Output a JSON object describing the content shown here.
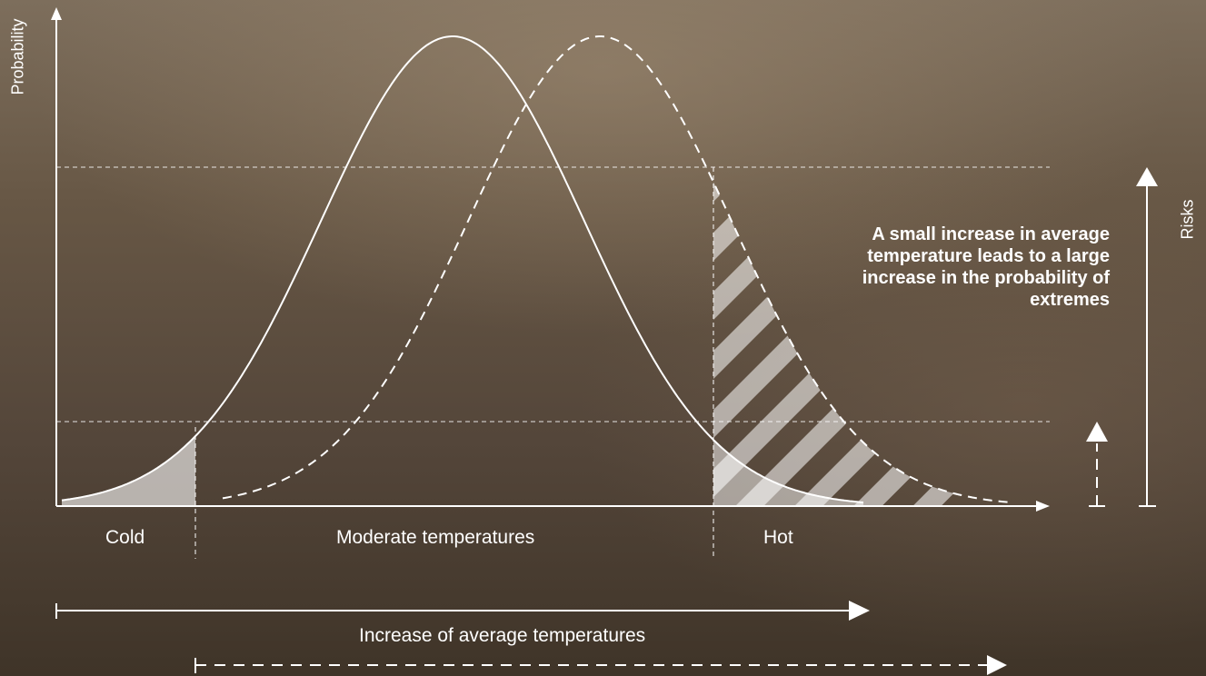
{
  "axes": {
    "y_label": "Probability",
    "risk_label": "Risks"
  },
  "regions": {
    "cold": "Cold",
    "moderate": "Moderate temperatures",
    "hot": "Hot"
  },
  "annotation": "A small increase in average temperature leads to a large increase in the probability of extremes",
  "shift_label": "Increase of average temperatures",
  "colors": {
    "line": "#ffffff",
    "fill": "rgba(255,255,255,0.55)",
    "background": "#5a4c3c"
  }
}
